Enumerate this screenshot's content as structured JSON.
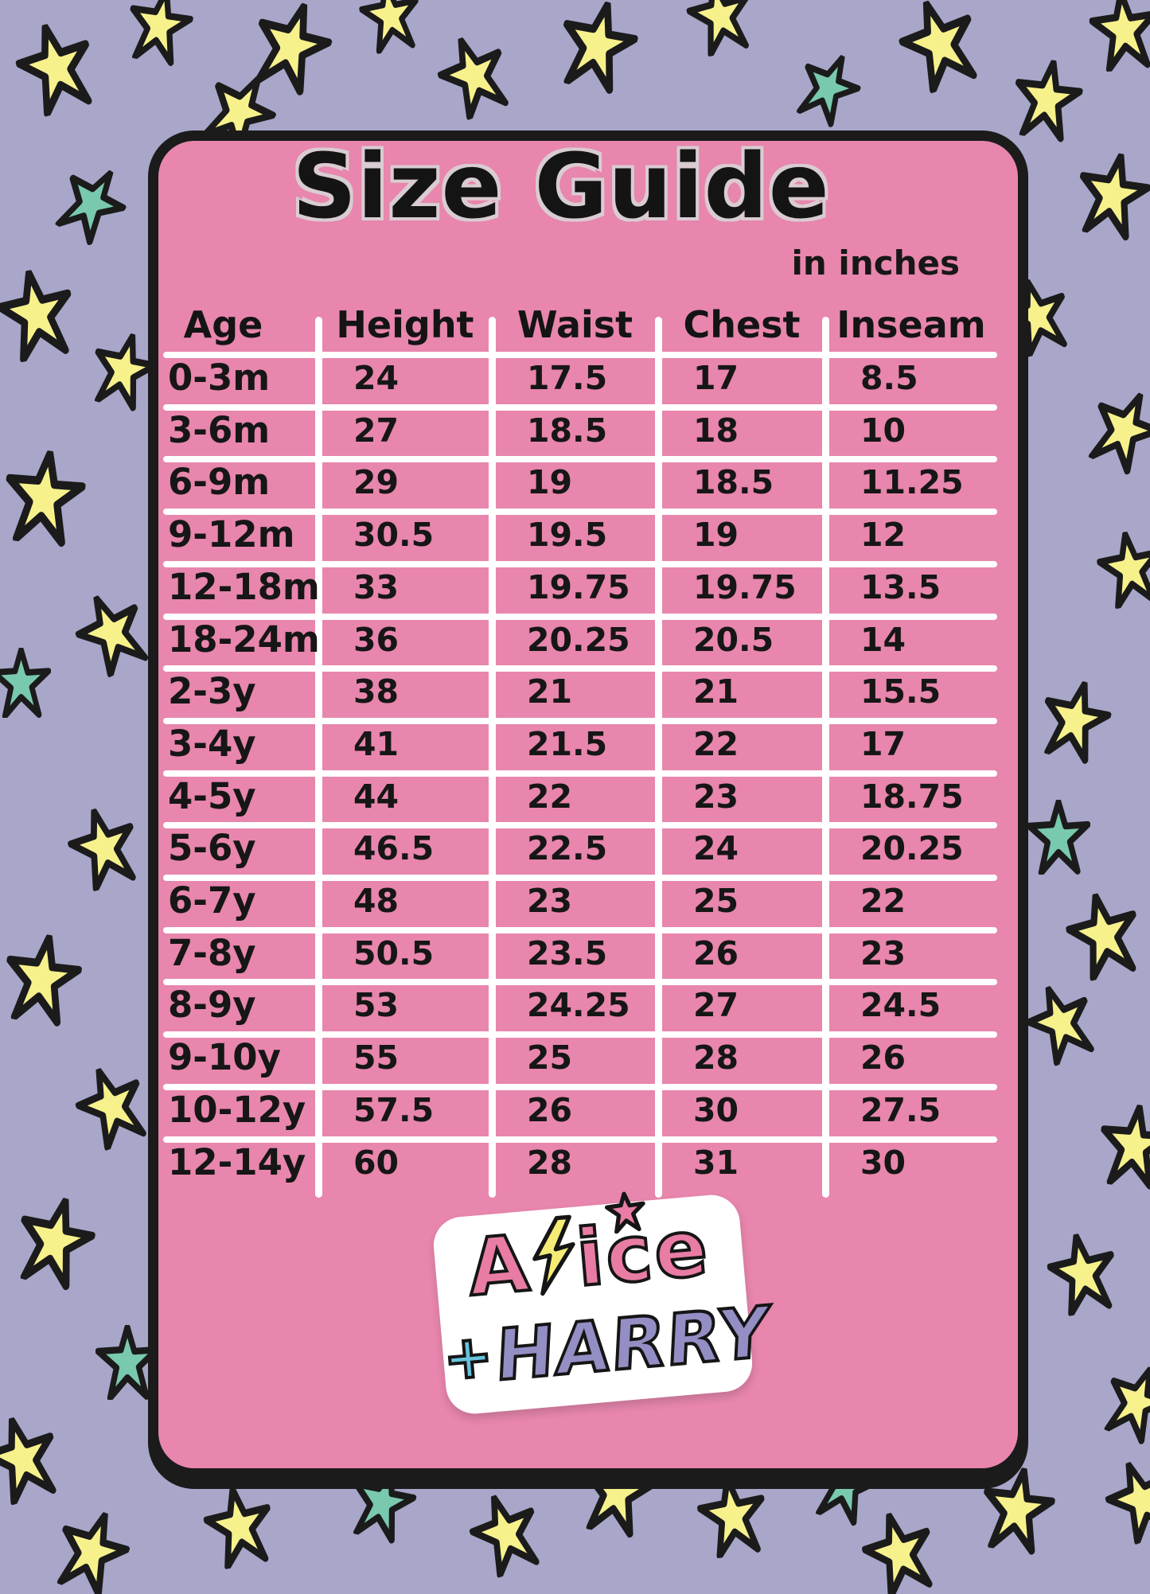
{
  "title": "Size Guide",
  "subtitle": "in inches",
  "chart_data": {
    "type": "table",
    "unit": "inches",
    "columns": [
      "Age",
      "Height",
      "Waist",
      "Chest",
      "Inseam"
    ],
    "rows": [
      [
        "0-3m",
        "24",
        "17.5",
        "17",
        "8.5"
      ],
      [
        "3-6m",
        "27",
        "18.5",
        "18",
        "10"
      ],
      [
        "6-9m",
        "29",
        "19",
        "18.5",
        "11.25"
      ],
      [
        "9-12m",
        "30.5",
        "19.5",
        "19",
        "12"
      ],
      [
        "12-18m",
        "33",
        "19.75",
        "19.75",
        "13.5"
      ],
      [
        "18-24m",
        "36",
        "20.25",
        "20.5",
        "14"
      ],
      [
        "2-3y",
        "38",
        "21",
        "21",
        "15.5"
      ],
      [
        "3-4y",
        "41",
        "21.5",
        "22",
        "17"
      ],
      [
        "4-5y",
        "44",
        "22",
        "23",
        "18.75"
      ],
      [
        "5-6y",
        "46.5",
        "22.5",
        "24",
        "20.25"
      ],
      [
        "6-7y",
        "48",
        "23",
        "25",
        "22"
      ],
      [
        "7-8y",
        "50.5",
        "23.5",
        "26",
        "23"
      ],
      [
        "8-9y",
        "53",
        "24.25",
        "27",
        "24.5"
      ],
      [
        "9-10y",
        "55",
        "25",
        "28",
        "26"
      ],
      [
        "10-12y",
        "57.5",
        "26",
        "30",
        "27.5"
      ],
      [
        "12-14y",
        "60",
        "28",
        "31",
        "30"
      ]
    ]
  },
  "logo": {
    "word1_start": "A",
    "word1_end": "ice",
    "plus": "+",
    "word2": "HARRY"
  },
  "colors": {
    "background": "#a8a6c9",
    "card_pink": "#e886ad",
    "star_yellow": "#f7f18c",
    "star_teal": "#79c9af",
    "grid_line": "#ffffff",
    "text_black": "#161616",
    "logo_pink": "#e87ca4",
    "logo_cyan": "#67c3de",
    "logo_purple": "#938ec3",
    "bolt_yellow": "#f4ec75"
  }
}
